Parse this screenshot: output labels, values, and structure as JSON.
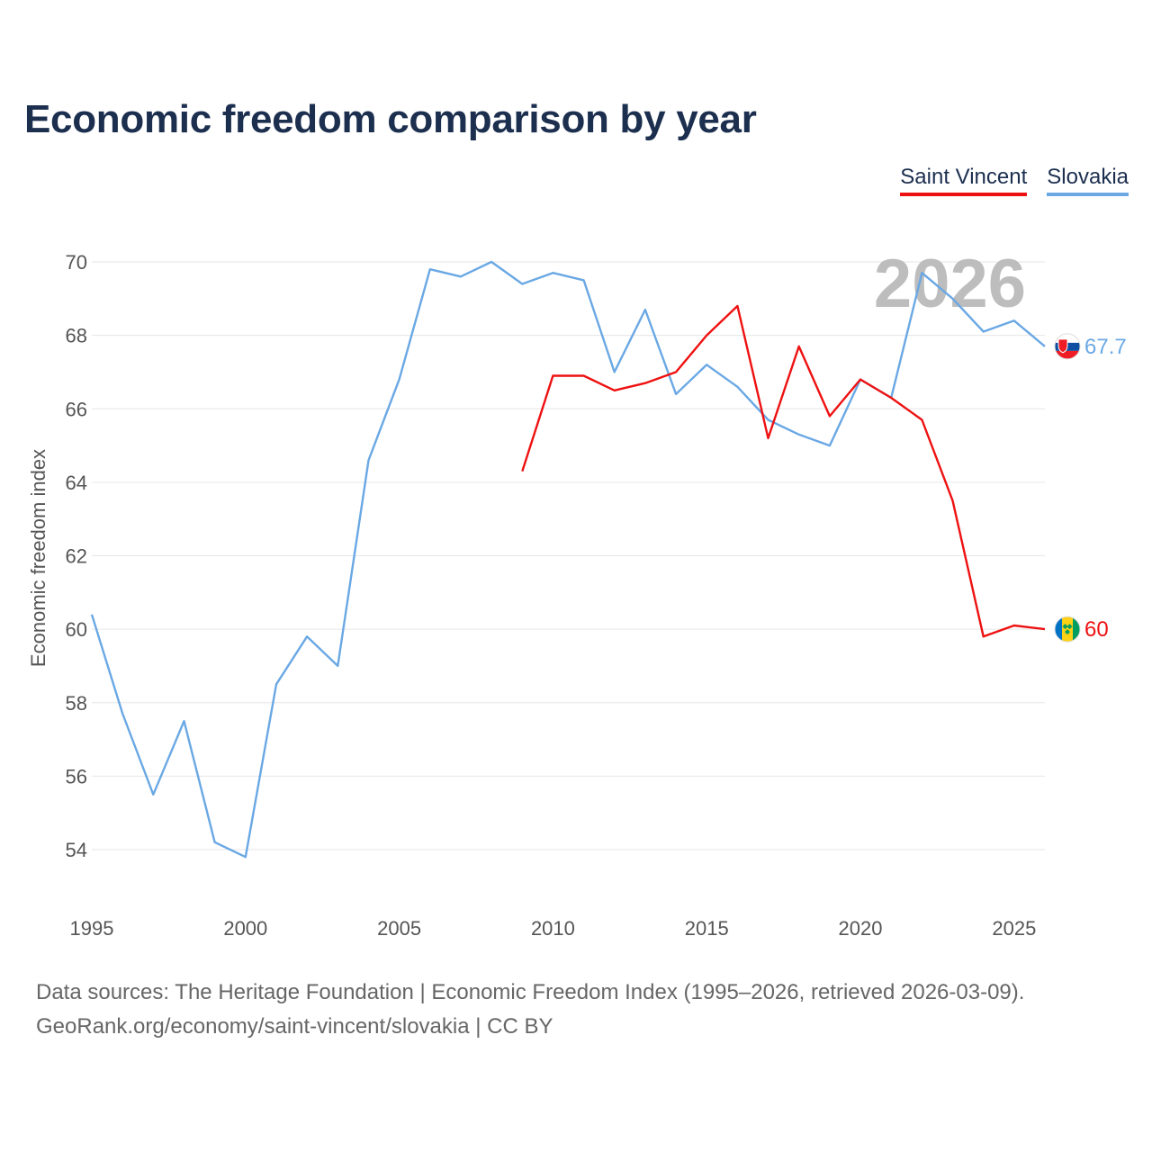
{
  "title": "Economic freedom comparison by year",
  "legend": [
    {
      "label": "Saint Vincent",
      "color": "#ee1111"
    },
    {
      "label": "Slovakia",
      "color": "#6aa8e4"
    }
  ],
  "footer": {
    "line1": "Data sources: The Heritage Foundation | Economic Freedom Index (1995–2026, retrieved 2026-03-09).",
    "line2": "GeoRank.org/economy/saint-vincent/slovakia | CC BY"
  },
  "chart_data": {
    "type": "line",
    "title": "Economic freedom comparison by year",
    "xlabel": "",
    "ylabel": "Economic freedom index",
    "xlim": [
      1995,
      2026
    ],
    "ylim": [
      53,
      71
    ],
    "x_ticks": [
      1995,
      2000,
      2005,
      2010,
      2015,
      2020,
      2025
    ],
    "y_ticks": [
      54,
      56,
      58,
      60,
      62,
      64,
      66,
      68,
      70
    ],
    "grid": true,
    "year_watermark": "2026",
    "series": [
      {
        "name": "Slovakia",
        "color": "#6aa8e4",
        "end_label": "67.7",
        "flag": "slovakia-flag-icon",
        "points": [
          [
            1995,
            60.4
          ],
          [
            1996,
            57.7
          ],
          [
            1997,
            55.5
          ],
          [
            1998,
            57.5
          ],
          [
            1999,
            54.2
          ],
          [
            2000,
            53.8
          ],
          [
            2001,
            58.5
          ],
          [
            2002,
            59.8
          ],
          [
            2003,
            59.0
          ],
          [
            2004,
            64.6
          ],
          [
            2005,
            66.8
          ],
          [
            2006,
            69.8
          ],
          [
            2007,
            69.6
          ],
          [
            2008,
            70.0
          ],
          [
            2009,
            69.4
          ],
          [
            2010,
            69.7
          ],
          [
            2011,
            69.5
          ],
          [
            2012,
            67.0
          ],
          [
            2013,
            68.7
          ],
          [
            2014,
            66.4
          ],
          [
            2015,
            67.2
          ],
          [
            2016,
            66.6
          ],
          [
            2017,
            65.7
          ],
          [
            2018,
            65.3
          ],
          [
            2019,
            65.0
          ],
          [
            2020,
            66.8
          ],
          [
            2021,
            66.3
          ],
          [
            2022,
            69.7
          ],
          [
            2023,
            69.0
          ],
          [
            2024,
            68.1
          ],
          [
            2025,
            68.4
          ],
          [
            2026,
            67.7
          ]
        ]
      },
      {
        "name": "Saint Vincent",
        "color": "#ee1111",
        "end_label": "60",
        "flag": "saint-vincent-flag-icon",
        "points": [
          [
            2009,
            64.3
          ],
          [
            2010,
            66.9
          ],
          [
            2011,
            66.9
          ],
          [
            2012,
            66.5
          ],
          [
            2013,
            66.7
          ],
          [
            2014,
            67.0
          ],
          [
            2015,
            68.0
          ],
          [
            2016,
            68.8
          ],
          [
            2017,
            65.2
          ],
          [
            2018,
            67.7
          ],
          [
            2019,
            65.8
          ],
          [
            2020,
            66.8
          ],
          [
            2021,
            66.3
          ],
          [
            2022,
            65.7
          ],
          [
            2023,
            63.5
          ],
          [
            2024,
            59.8
          ],
          [
            2025,
            60.1
          ],
          [
            2026,
            60.0
          ]
        ]
      }
    ]
  }
}
